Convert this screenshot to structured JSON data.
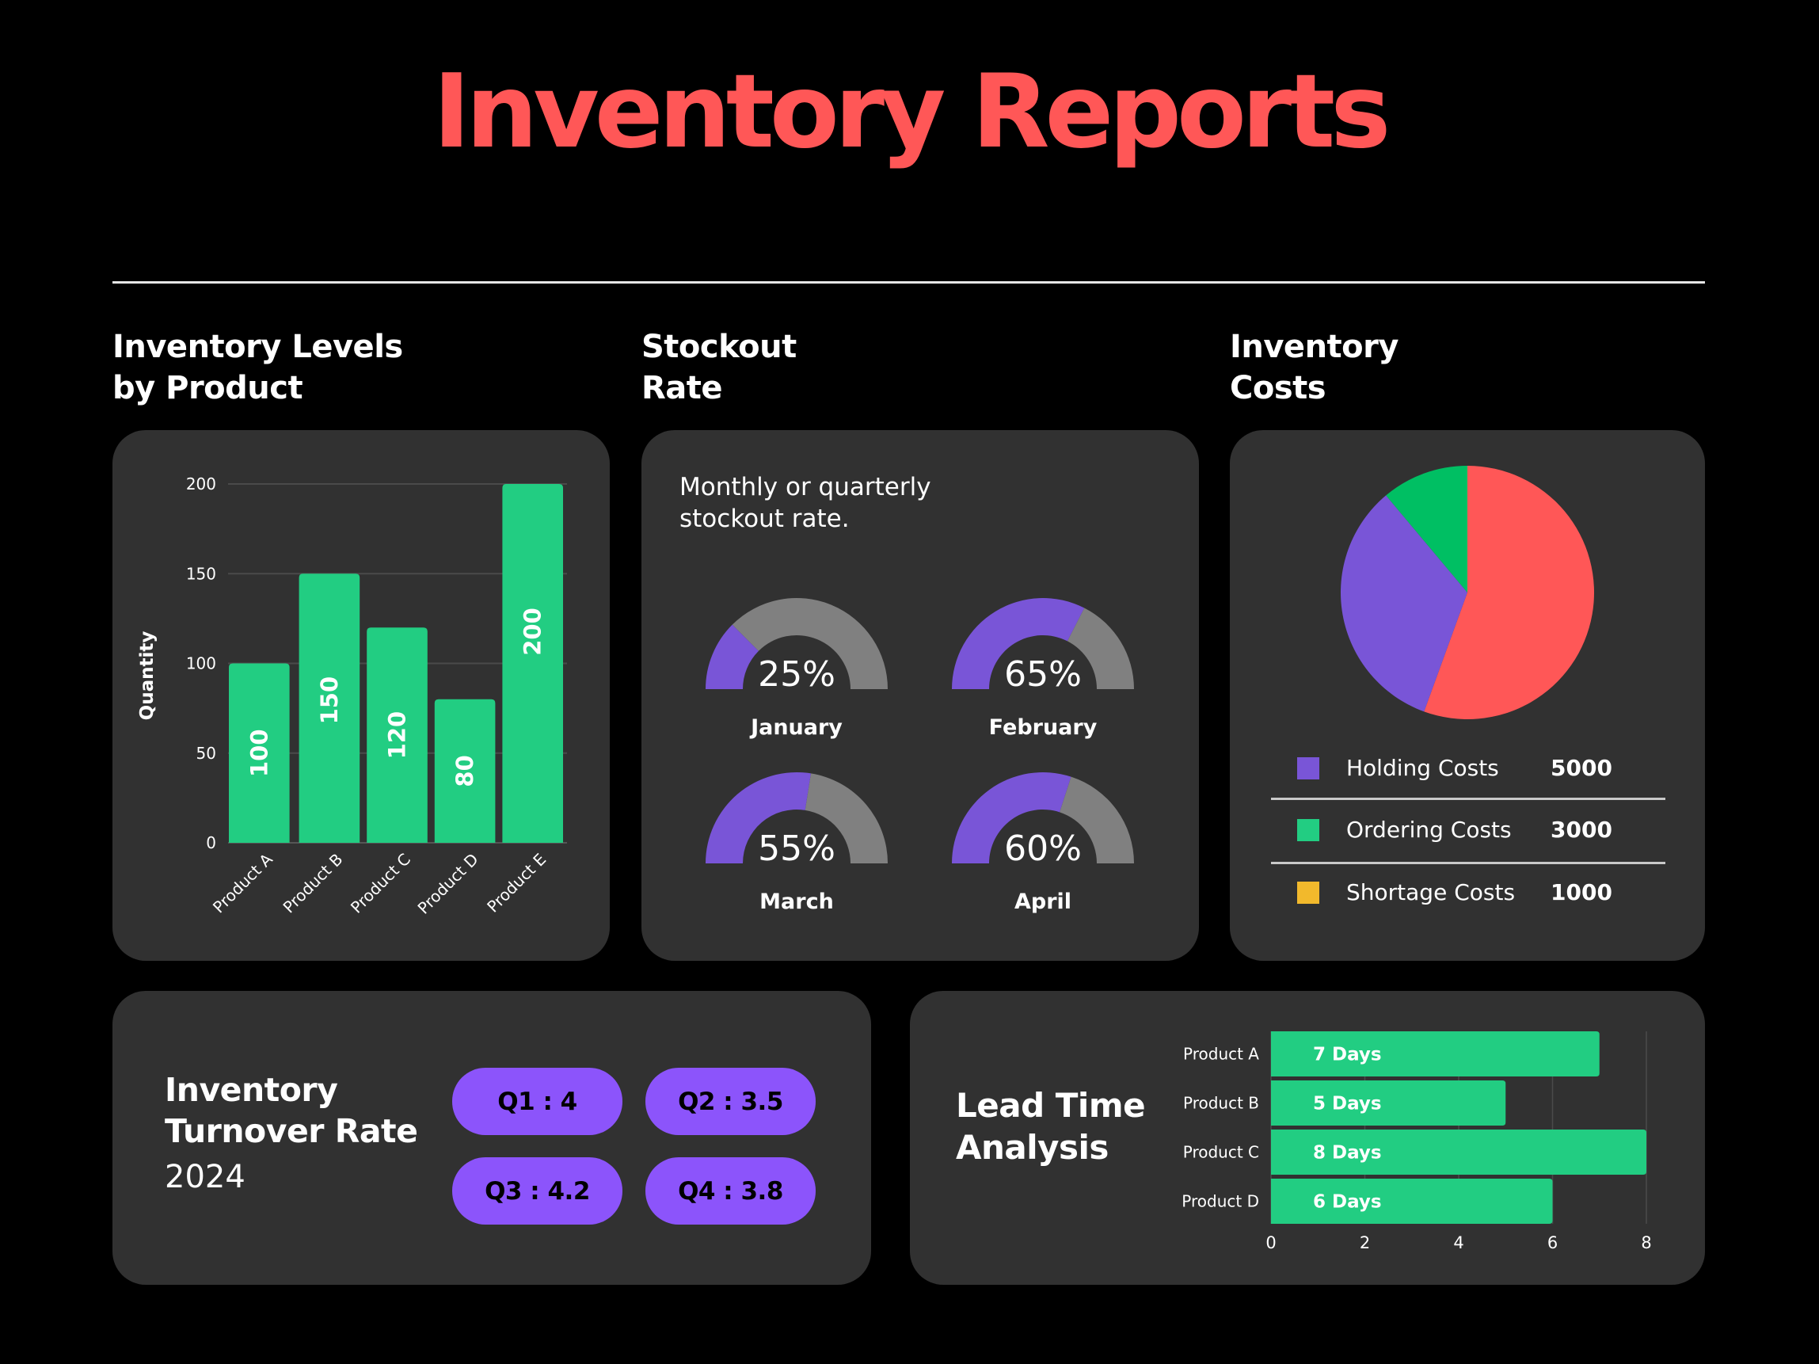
{
  "header": {
    "title": "Inventory Reports"
  },
  "colors": {
    "background": "#000000",
    "card": "#313131",
    "title": "#ff5757",
    "bar_green": "#22cd82",
    "gauge_fill": "#7955d7",
    "gauge_track": "#808080",
    "pill": "#8c54fb",
    "grid": "#4a4a4a"
  },
  "sections": {
    "inventory_levels": {
      "heading_line1": "Inventory Levels",
      "heading_line2": "by Product"
    },
    "stockout": {
      "heading_line1": "Stockout",
      "heading_line2": "Rate",
      "description_line1": "Monthly or quarterly",
      "description_line2": "stockout rate."
    },
    "costs": {
      "heading_line1": "Inventory",
      "heading_line2": "Costs"
    },
    "turnover": {
      "title_line1": "Inventory",
      "title_line2": "Turnover Rate",
      "year": "2024",
      "quarters": [
        {
          "label": "Q1 : 4",
          "quarter": "Q1",
          "value": 4
        },
        {
          "label": "Q2 : 3.5",
          "quarter": "Q2",
          "value": 3.5
        },
        {
          "label": "Q3 : 4.2",
          "quarter": "Q3",
          "value": 4.2
        },
        {
          "label": "Q4 : 3.8",
          "quarter": "Q4",
          "value": 3.8
        }
      ]
    },
    "lead_time": {
      "title_line1": "Lead Time",
      "title_line2": "Analysis"
    }
  },
  "chart_data": [
    {
      "id": "inventory_levels",
      "type": "bar",
      "title": "Inventory Levels by Product",
      "categories": [
        "Product A",
        "Product B",
        "Product C",
        "Product D",
        "Product E"
      ],
      "values": [
        100,
        150,
        120,
        80,
        200
      ],
      "data_labels": [
        "100",
        "150",
        "120",
        "80",
        "200"
      ],
      "xlabel": "",
      "ylabel": "Quantity",
      "ylim": [
        0,
        200
      ],
      "yticks": [
        0,
        50,
        100,
        150,
        200
      ],
      "grid": true,
      "color": "#22cd82"
    },
    {
      "id": "stockout_rate",
      "type": "gauge",
      "title": "Stockout Rate",
      "categories": [
        "January",
        "February",
        "March",
        "April"
      ],
      "values": [
        25,
        65,
        55,
        60
      ],
      "value_labels": [
        "25%",
        "65%",
        "55%",
        "60%"
      ],
      "range": [
        0,
        100
      ]
    },
    {
      "id": "inventory_costs",
      "type": "pie",
      "title": "Inventory Costs",
      "slices": [
        {
          "label": "Holding Costs",
          "value": 5000,
          "value_label": "5000",
          "slice_color": "#ff5757",
          "legend_color": "#7955d7"
        },
        {
          "label": "Ordering Costs",
          "value": 3000,
          "value_label": "3000",
          "slice_color": "#7955d7",
          "legend_color": "#22cd82"
        },
        {
          "label": "Shortage Costs",
          "value": 1000,
          "value_label": "1000",
          "slice_color": "#00bf63",
          "legend_color": "#f2b92c"
        }
      ],
      "legend": "bottom"
    },
    {
      "id": "lead_time",
      "type": "bar",
      "orientation": "horizontal",
      "title": "Lead Time Analysis",
      "categories": [
        "Product A",
        "Product B",
        "Product C",
        "Product D"
      ],
      "values": [
        7,
        5,
        8,
        6
      ],
      "data_labels": [
        "7 Days",
        "5 Days",
        "8 Days",
        "6 Days"
      ],
      "xlim": [
        0,
        8
      ],
      "xticks": [
        0,
        2,
        4,
        6,
        8
      ],
      "grid": true,
      "color": "#22cd82"
    }
  ]
}
